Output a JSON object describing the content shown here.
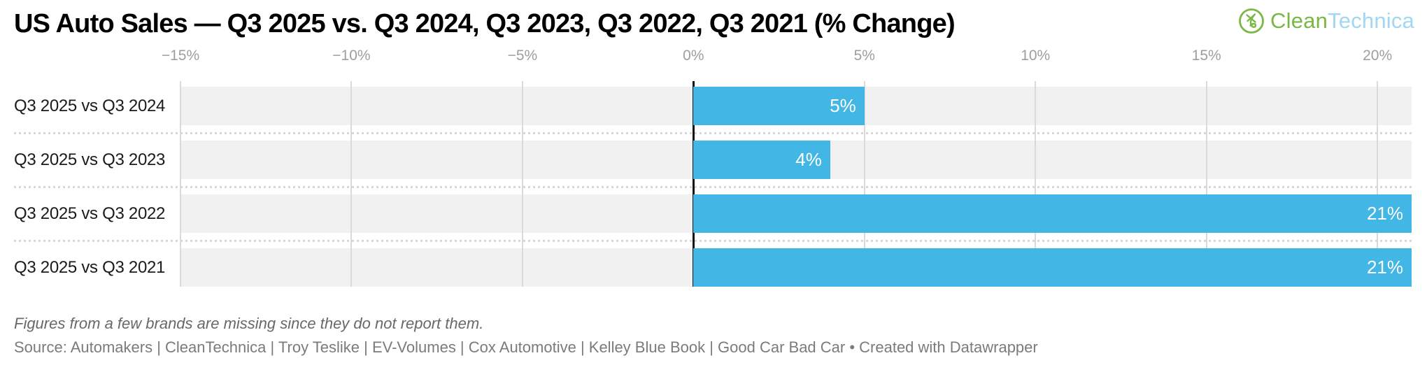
{
  "header": {
    "title": "US Auto Sales — Q3 2025 vs. Q3 2024, Q3 2023, Q3 2022, Q3 2021 (% Change)",
    "logo": {
      "icon": "cleantechnica-circle-sprout-icon",
      "brand_part_green": "Clean",
      "brand_part_blue": "Technica",
      "green": "#79b843",
      "light_blue": "#a2d7f3"
    }
  },
  "chart_data": {
    "type": "bar",
    "orientation": "horizontal",
    "title": "US Auto Sales — Q3 2025 vs. Q3 2024, Q3 2023, Q3 2022, Q3 2021 (% Change)",
    "categories": [
      "Q3 2025 vs Q3 2024",
      "Q3 2025 vs Q3 2023",
      "Q3 2025 vs Q3 2022",
      "Q3 2025 vs Q3 2021"
    ],
    "values": [
      5,
      4,
      21,
      21
    ],
    "value_labels": [
      "5%",
      "4%",
      "21%",
      "21%"
    ],
    "xlabel": "",
    "ylabel": "",
    "axis": {
      "unit": "%",
      "min": -15,
      "max": 21,
      "zero_line_value": 0,
      "ticks": [
        {
          "label": "−15%",
          "value": -15
        },
        {
          "label": "−10%",
          "value": -10
        },
        {
          "label": "−5%",
          "value": -5
        },
        {
          "label": "0%",
          "value": 0
        },
        {
          "label": "5%",
          "value": 5
        },
        {
          "label": "10%",
          "value": 10
        },
        {
          "label": "15%",
          "value": 15
        },
        {
          "label": "20%",
          "value": 20
        }
      ]
    },
    "layout": {
      "grid": true,
      "legend": "none",
      "value_labels_inside_bar": true
    },
    "colors": {
      "bar": "#42b6e4",
      "track": "#f1f1f1",
      "gridline": "#dadada",
      "zero_line": "#111111",
      "value_label": "#ffffff"
    }
  },
  "footer": {
    "footnote": "Figures from a few brands are missing since they do not report them.",
    "source": "Source: Automakers | CleanTechnica | Troy Teslike | EV-Volumes | Cox Automotive | Kelley Blue Book | Good Car Bad Car • Created with Datawrapper"
  }
}
